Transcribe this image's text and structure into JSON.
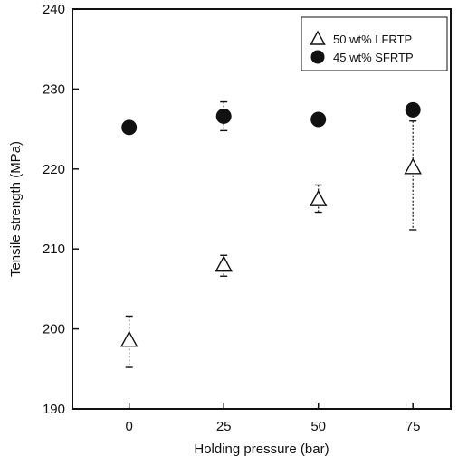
{
  "chart_data": {
    "type": "scatter",
    "xlabel": "Holding pressure (bar)",
    "ylabel": "Tensile strength (MPa)",
    "x_categories": [
      "0",
      "25",
      "50",
      "75"
    ],
    "xlim": [
      -15,
      85
    ],
    "ylim": [
      190,
      240
    ],
    "y_ticks": [
      190,
      200,
      210,
      220,
      230,
      240
    ],
    "grid": false,
    "legend_position": "top-right",
    "series": [
      {
        "name": "50 wt% LFRTP",
        "marker": "open-triangle",
        "color": "#111111",
        "points": [
          {
            "x": 0,
            "y": 198.6,
            "err_low": 195.2,
            "err_high": 201.6
          },
          {
            "x": 25,
            "y": 208.0,
            "err_low": 206.6,
            "err_high": 209.2
          },
          {
            "x": 50,
            "y": 216.2,
            "err_low": 214.6,
            "err_high": 218.0
          },
          {
            "x": 75,
            "y": 220.2,
            "err_low": 212.4,
            "err_high": 226.0
          }
        ]
      },
      {
        "name": "45 wt% SFRTP",
        "marker": "filled-circle",
        "color": "#111111",
        "points": [
          {
            "x": 0,
            "y": 225.2,
            "err_low": null,
            "err_high": null
          },
          {
            "x": 25,
            "y": 226.6,
            "err_low": 224.8,
            "err_high": 228.4
          },
          {
            "x": 50,
            "y": 226.2,
            "err_low": null,
            "err_high": null
          },
          {
            "x": 75,
            "y": 227.4,
            "err_low": null,
            "err_high": null
          }
        ]
      }
    ]
  }
}
